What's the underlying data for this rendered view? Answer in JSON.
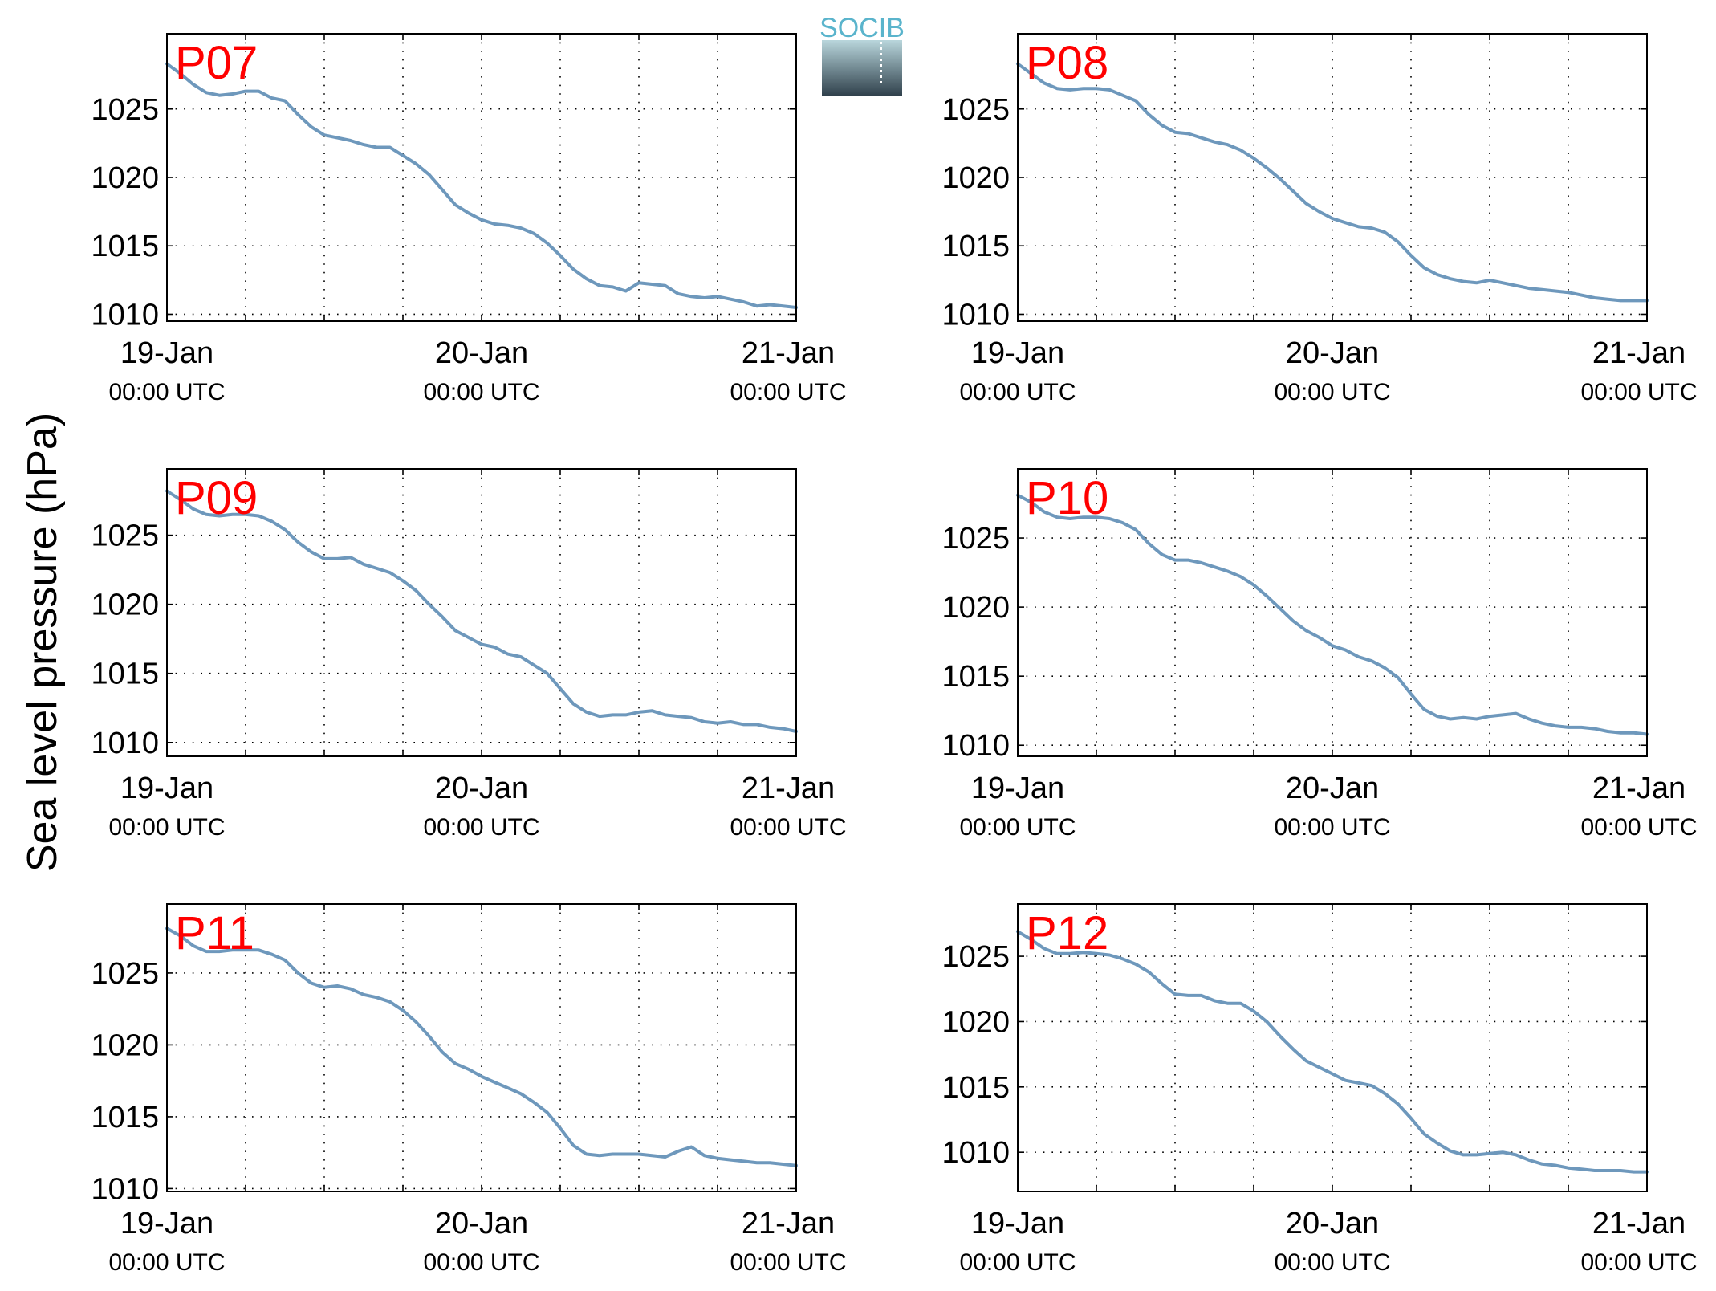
{
  "figure": {
    "ylabel": "Sea level pressure (hPa)",
    "logo_text": "SOCIB",
    "colors": {
      "line": "#6e98bc",
      "panel_label": "#ff0000",
      "logo_text": "#5ab4cc",
      "logo_top": "#b9d6dc",
      "logo_bottom": "#2e3f4a"
    }
  },
  "chart_data": [
    {
      "type": "line",
      "label": "P07",
      "x_ticks": [
        {
          "date": "19-Jan",
          "time": "00:00 UTC"
        },
        {
          "date": "20-Jan",
          "time": "00:00 UTC"
        },
        {
          "date": "21-Jan",
          "time": "00:00 UTC"
        }
      ],
      "xlim_hours": [
        0,
        48
      ],
      "ylim": [
        1009.5,
        1030.5
      ],
      "yticks": [
        1010,
        1015,
        1020,
        1025
      ],
      "grid": true,
      "x_hours": [
        0,
        1,
        2,
        3,
        4,
        5,
        6,
        7,
        8,
        9,
        10,
        11,
        12,
        13,
        14,
        15,
        16,
        17,
        18,
        19,
        20,
        21,
        22,
        23,
        24,
        25,
        26,
        27,
        28,
        29,
        30,
        31,
        32,
        33,
        34,
        35,
        36,
        37,
        38,
        39,
        40,
        41,
        42,
        43,
        44,
        45,
        46,
        47,
        48
      ],
      "values": [
        1028.3,
        1027.6,
        1026.8,
        1026.2,
        1026.0,
        1026.1,
        1026.3,
        1026.3,
        1025.8,
        1025.6,
        1024.6,
        1023.7,
        1023.1,
        1022.9,
        1022.7,
        1022.4,
        1022.2,
        1022.2,
        1021.6,
        1021.0,
        1020.2,
        1019.1,
        1018.0,
        1017.4,
        1016.9,
        1016.6,
        1016.5,
        1016.3,
        1015.9,
        1015.2,
        1014.3,
        1013.3,
        1012.6,
        1012.1,
        1012.0,
        1011.7,
        1012.3,
        1012.2,
        1012.1,
        1011.5,
        1011.3,
        1011.2,
        1011.3,
        1011.1,
        1010.9,
        1010.6,
        1010.7,
        1010.6,
        1010.5
      ]
    },
    {
      "type": "line",
      "label": "P08",
      "x_ticks": [
        {
          "date": "19-Jan",
          "time": "00:00 UTC"
        },
        {
          "date": "20-Jan",
          "time": "00:00 UTC"
        },
        {
          "date": "21-Jan",
          "time": "00:00 UTC"
        }
      ],
      "xlim_hours": [
        0,
        48
      ],
      "ylim": [
        1009.5,
        1030.5
      ],
      "yticks": [
        1010,
        1015,
        1020,
        1025
      ],
      "grid": true,
      "x_hours": [
        0,
        1,
        2,
        3,
        4,
        5,
        6,
        7,
        8,
        9,
        10,
        11,
        12,
        13,
        14,
        15,
        16,
        17,
        18,
        19,
        20,
        21,
        22,
        23,
        24,
        25,
        26,
        27,
        28,
        29,
        30,
        31,
        32,
        33,
        34,
        35,
        36,
        37,
        38,
        39,
        40,
        41,
        42,
        43,
        44,
        45,
        46,
        47,
        48
      ],
      "values": [
        1028.3,
        1027.6,
        1026.9,
        1026.5,
        1026.4,
        1026.5,
        1026.5,
        1026.4,
        1026.0,
        1025.6,
        1024.6,
        1023.8,
        1023.3,
        1023.2,
        1022.9,
        1022.6,
        1022.4,
        1022.0,
        1021.4,
        1020.7,
        1019.9,
        1019.0,
        1018.1,
        1017.5,
        1017.0,
        1016.7,
        1016.4,
        1016.3,
        1016.0,
        1015.3,
        1014.3,
        1013.4,
        1012.9,
        1012.6,
        1012.4,
        1012.3,
        1012.5,
        1012.3,
        1012.1,
        1011.9,
        1011.8,
        1011.7,
        1011.6,
        1011.4,
        1011.2,
        1011.1,
        1011.0,
        1011.0,
        1011.0
      ]
    },
    {
      "type": "line",
      "label": "P09",
      "x_ticks": [
        {
          "date": "19-Jan",
          "time": "00:00 UTC"
        },
        {
          "date": "20-Jan",
          "time": "00:00 UTC"
        },
        {
          "date": "21-Jan",
          "time": "00:00 UTC"
        }
      ],
      "xlim_hours": [
        0,
        48
      ],
      "ylim": [
        1009.0,
        1029.8
      ],
      "yticks": [
        1010,
        1015,
        1020,
        1025
      ],
      "grid": true,
      "x_hours": [
        0,
        1,
        2,
        3,
        4,
        5,
        6,
        7,
        8,
        9,
        10,
        11,
        12,
        13,
        14,
        15,
        16,
        17,
        18,
        19,
        20,
        21,
        22,
        23,
        24,
        25,
        26,
        27,
        28,
        29,
        30,
        31,
        32,
        33,
        34,
        35,
        36,
        37,
        38,
        39,
        40,
        41,
        42,
        43,
        44,
        45,
        46,
        47,
        48
      ],
      "values": [
        1028.2,
        1027.6,
        1026.9,
        1026.5,
        1026.4,
        1026.5,
        1026.5,
        1026.4,
        1026.0,
        1025.4,
        1024.5,
        1023.8,
        1023.3,
        1023.3,
        1023.4,
        1022.9,
        1022.6,
        1022.3,
        1021.7,
        1021.0,
        1020.0,
        1019.1,
        1018.1,
        1017.6,
        1017.1,
        1016.9,
        1016.4,
        1016.2,
        1015.6,
        1015.0,
        1013.9,
        1012.8,
        1012.2,
        1011.9,
        1012.0,
        1012.0,
        1012.2,
        1012.3,
        1012.0,
        1011.9,
        1011.8,
        1011.5,
        1011.4,
        1011.5,
        1011.3,
        1011.3,
        1011.1,
        1011.0,
        1010.8
      ]
    },
    {
      "type": "line",
      "label": "P10",
      "x_ticks": [
        {
          "date": "19-Jan",
          "time": "00:00 UTC"
        },
        {
          "date": "20-Jan",
          "time": "00:00 UTC"
        },
        {
          "date": "21-Jan",
          "time": "00:00 UTC"
        }
      ],
      "xlim_hours": [
        0,
        48
      ],
      "ylim": [
        1009.2,
        1030.0
      ],
      "yticks": [
        1010,
        1015,
        1020,
        1025
      ],
      "grid": true,
      "x_hours": [
        0,
        1,
        2,
        3,
        4,
        5,
        6,
        7,
        8,
        9,
        10,
        11,
        12,
        13,
        14,
        15,
        16,
        17,
        18,
        19,
        20,
        21,
        22,
        23,
        24,
        25,
        26,
        27,
        28,
        29,
        30,
        31,
        32,
        33,
        34,
        35,
        36,
        37,
        38,
        39,
        40,
        41,
        42,
        43,
        44,
        45,
        46,
        47,
        48
      ],
      "values": [
        1028.1,
        1027.6,
        1026.9,
        1026.5,
        1026.4,
        1026.5,
        1026.5,
        1026.4,
        1026.1,
        1025.6,
        1024.6,
        1023.8,
        1023.4,
        1023.4,
        1023.2,
        1022.9,
        1022.6,
        1022.2,
        1021.6,
        1020.8,
        1019.9,
        1019.0,
        1018.3,
        1017.8,
        1017.2,
        1016.9,
        1016.4,
        1016.1,
        1015.6,
        1014.9,
        1013.7,
        1012.6,
        1012.1,
        1011.9,
        1012.0,
        1011.9,
        1012.1,
        1012.2,
        1012.3,
        1011.9,
        1011.6,
        1011.4,
        1011.3,
        1011.3,
        1011.2,
        1011.0,
        1010.9,
        1010.9,
        1010.8
      ]
    },
    {
      "type": "line",
      "label": "P11",
      "x_ticks": [
        {
          "date": "19-Jan",
          "time": "00:00 UTC"
        },
        {
          "date": "20-Jan",
          "time": "00:00 UTC"
        },
        {
          "date": "21-Jan",
          "time": "00:00 UTC"
        }
      ],
      "xlim_hours": [
        0,
        48
      ],
      "ylim": [
        1009.8,
        1029.8
      ],
      "yticks": [
        1010,
        1015,
        1020,
        1025
      ],
      "grid": true,
      "x_hours": [
        0,
        1,
        2,
        3,
        4,
        5,
        6,
        7,
        8,
        9,
        10,
        11,
        12,
        13,
        14,
        15,
        16,
        17,
        18,
        19,
        20,
        21,
        22,
        23,
        24,
        25,
        26,
        27,
        28,
        29,
        30,
        31,
        32,
        33,
        34,
        35,
        36,
        37,
        38,
        39,
        40,
        41,
        42,
        43,
        44,
        45,
        46,
        47,
        48
      ],
      "values": [
        1028.1,
        1027.6,
        1026.9,
        1026.5,
        1026.5,
        1026.6,
        1026.6,
        1026.6,
        1026.3,
        1025.9,
        1025.0,
        1024.3,
        1024.0,
        1024.1,
        1023.9,
        1023.5,
        1023.3,
        1023.0,
        1022.4,
        1021.6,
        1020.6,
        1019.5,
        1018.7,
        1018.3,
        1017.8,
        1017.4,
        1017.0,
        1016.6,
        1016.0,
        1015.3,
        1014.2,
        1013.0,
        1012.4,
        1012.3,
        1012.4,
        1012.4,
        1012.4,
        1012.3,
        1012.2,
        1012.6,
        1012.9,
        1012.3,
        1012.1,
        1012.0,
        1011.9,
        1011.8,
        1011.8,
        1011.7,
        1011.6
      ]
    },
    {
      "type": "line",
      "label": "P12",
      "x_ticks": [
        {
          "date": "19-Jan",
          "time": "00:00 UTC"
        },
        {
          "date": "20-Jan",
          "time": "00:00 UTC"
        },
        {
          "date": "21-Jan",
          "time": "00:00 UTC"
        }
      ],
      "xlim_hours": [
        0,
        48
      ],
      "ylim": [
        1007.0,
        1029.0
      ],
      "yticks": [
        1010,
        1015,
        1020,
        1025
      ],
      "grid": true,
      "x_hours": [
        0,
        1,
        2,
        3,
        4,
        5,
        6,
        7,
        8,
        9,
        10,
        11,
        12,
        13,
        14,
        15,
        16,
        17,
        18,
        19,
        20,
        21,
        22,
        23,
        24,
        25,
        26,
        27,
        28,
        29,
        30,
        31,
        32,
        33,
        34,
        35,
        36,
        37,
        38,
        39,
        40,
        41,
        42,
        43,
        44,
        45,
        46,
        47,
        48
      ],
      "values": [
        1026.9,
        1026.3,
        1025.6,
        1025.2,
        1025.2,
        1025.3,
        1025.2,
        1025.1,
        1024.8,
        1024.4,
        1023.8,
        1022.9,
        1022.1,
        1022.0,
        1022.0,
        1021.6,
        1021.4,
        1021.4,
        1020.8,
        1020.0,
        1018.9,
        1017.9,
        1017.0,
        1016.5,
        1016.0,
        1015.5,
        1015.3,
        1015.1,
        1014.5,
        1013.7,
        1012.6,
        1011.4,
        1010.7,
        1010.1,
        1009.8,
        1009.8,
        1009.9,
        1010.0,
        1009.8,
        1009.4,
        1009.1,
        1009.0,
        1008.8,
        1008.7,
        1008.6,
        1008.6,
        1008.6,
        1008.5,
        1008.5
      ]
    }
  ]
}
